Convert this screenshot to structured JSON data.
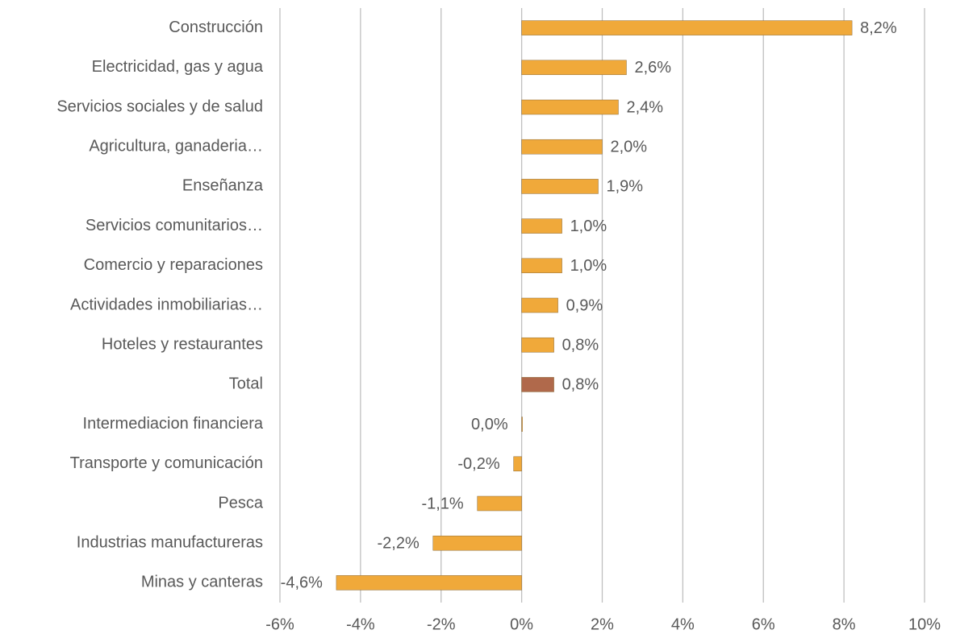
{
  "chart_data": {
    "type": "hbar",
    "categories": [
      "Construcción",
      "Electricidad, gas y agua",
      "Servicios sociales y de salud",
      "Agricultura, ganaderia…",
      "Enseñanza",
      "Servicios comunitarios…",
      "Comercio y reparaciones",
      "Actividades inmobiliarias…",
      "Hoteles y restaurantes",
      "Total",
      "Intermediacion financiera",
      "Transporte y comunicación",
      "Pesca",
      "Industrias manufactureras",
      "Minas y canteras"
    ],
    "values": [
      8.2,
      2.6,
      2.4,
      2.0,
      1.9,
      1.0,
      1.0,
      0.9,
      0.8,
      0.8,
      0.0,
      -0.2,
      -1.1,
      -2.2,
      -4.6
    ],
    "value_labels": [
      "8,2%",
      "2,6%",
      "2,4%",
      "2,0%",
      "1,9%",
      "1,0%",
      "1,0%",
      "0,9%",
      "0,8%",
      "0,8%",
      "0,0%",
      "-0,2%",
      "-1,1%",
      "-2,2%",
      "-4,6%"
    ],
    "colors": [
      "#f0a93a",
      "#f0a93a",
      "#f0a93a",
      "#f0a93a",
      "#f0a93a",
      "#f0a93a",
      "#f0a93a",
      "#f0a93a",
      "#f0a93a",
      "#b0694b",
      "#f0a93a",
      "#f0a93a",
      "#f0a93a",
      "#f0a93a",
      "#f0a93a"
    ],
    "xlim": [
      -6,
      10
    ],
    "xticks": [
      {
        "value": -6,
        "label": "-6%"
      },
      {
        "value": -4,
        "label": "-4%"
      },
      {
        "value": -2,
        "label": "-2%"
      },
      {
        "value": 0,
        "label": "0%"
      },
      {
        "value": 2,
        "label": "2%"
      },
      {
        "value": 4,
        "label": "4%"
      },
      {
        "value": 6,
        "label": "6%"
      },
      {
        "value": 8,
        "label": "8%"
      },
      {
        "value": 10,
        "label": "10%"
      }
    ],
    "grid": true
  }
}
